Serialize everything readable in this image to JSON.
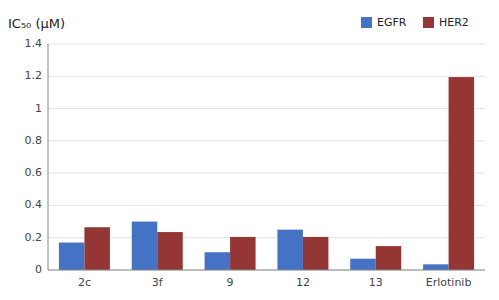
{
  "chart_data": {
    "type": "bar",
    "y_label": "IC₅₀ (μM)",
    "categories": [
      "2c",
      "3f",
      "9",
      "12",
      "13",
      "Erlotinib"
    ],
    "series": [
      {
        "name": "EGFR",
        "color": "#4472C4",
        "values": [
          0.17,
          0.3,
          0.11,
          0.25,
          0.07,
          0.035
        ]
      },
      {
        "name": "HER2",
        "color": "#943634",
        "values": [
          0.265,
          0.235,
          0.205,
          0.205,
          0.148,
          1.195
        ]
      }
    ],
    "ylim": [
      0,
      1.4
    ],
    "yticks": [
      0,
      0.2,
      0.4,
      0.6,
      0.8,
      1,
      1.2,
      1.4
    ],
    "grid": true,
    "legend": "upper right"
  }
}
